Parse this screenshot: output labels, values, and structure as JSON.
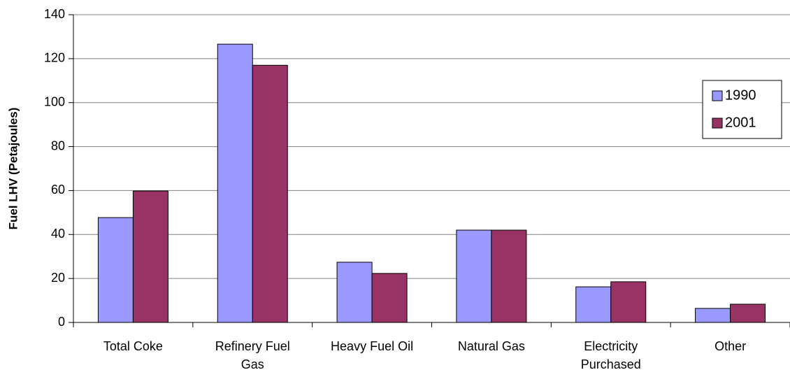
{
  "chart_data": {
    "type": "bar",
    "ylabel": "Fuel LHV (Petajoules)",
    "categories": [
      "Total Coke",
      "Refinery Fuel Gas",
      "Heavy Fuel Oil",
      "Natural Gas",
      "Electricity Purchased",
      "Other"
    ],
    "series": [
      {
        "name": "1990",
        "color": "#9999ff",
        "values": [
          47.7,
          126.6,
          27.4,
          42,
          16.2,
          6.4
        ]
      },
      {
        "name": "2001",
        "color": "#993366",
        "values": [
          59.8,
          117,
          22.3,
          42,
          18.5,
          8.3
        ]
      }
    ],
    "ylim": [
      0,
      140
    ],
    "yticks": [
      0,
      20,
      40,
      60,
      80,
      100,
      120,
      140
    ],
    "grid": true,
    "legend": "right"
  }
}
